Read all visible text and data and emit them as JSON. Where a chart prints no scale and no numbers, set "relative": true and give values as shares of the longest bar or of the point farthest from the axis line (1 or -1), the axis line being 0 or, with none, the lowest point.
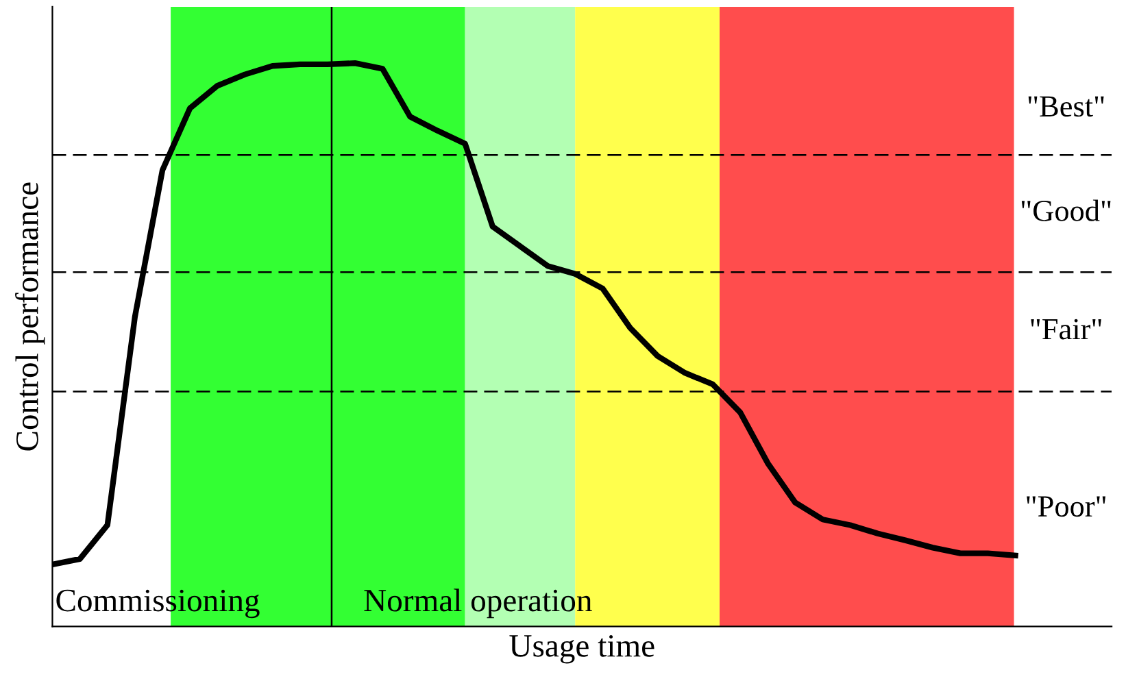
{
  "chart_data": {
    "type": "line",
    "relative": true,
    "xlabel": "Usage time",
    "ylabel": "Control performance",
    "categories": [
      null,
      null,
      null,
      null,
      null,
      null,
      null,
      null,
      null,
      null,
      null,
      null,
      null,
      null,
      null,
      null,
      null,
      null,
      null,
      null,
      null,
      null,
      null,
      null,
      null,
      null,
      null,
      null,
      null,
      null,
      null,
      null,
      null,
      null,
      null,
      null
    ],
    "series": [
      {
        "color": "#000000",
        "values": [
          0.11,
          0.12,
          0.18,
          0.55,
          0.81,
          0.92,
          0.96,
          0.98,
          0.995,
          0.998,
          0.998,
          1,
          0.99,
          0.905,
          0.88,
          0.857,
          0.71,
          0.675,
          0.64,
          0.626,
          0.6,
          0.53,
          0.48,
          0.45,
          0.43,
          0.38,
          0.29,
          0.22,
          0.19,
          0.18,
          0.165,
          0.153,
          0.14,
          0.13,
          0.13,
          0.126
        ]
      }
    ],
    "ref_lines": [
      {
        "axis": "y",
        "value": 0.837,
        "line_style": "dashed",
        "color": "#000000"
      },
      {
        "axis": "y",
        "value": 0.629,
        "line_style": "dashed",
        "color": "#000000"
      },
      {
        "axis": "y",
        "value": 0.417,
        "line_style": "dashed",
        "color": "#000000"
      }
    ],
    "annotations": [
      "Commissioning",
      "Normal operation",
      "\"Best\"",
      "\"Good\"",
      "\"Fair\"",
      "\"Poor\""
    ],
    "line_style": "solid",
    "marker": "none",
    "grid": false,
    "legend": false,
    "tick_labels": false
  }
}
